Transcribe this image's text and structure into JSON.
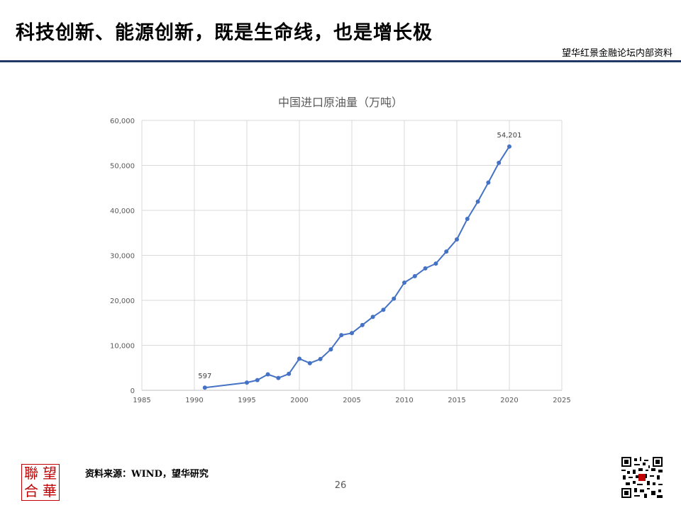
{
  "header": {
    "title": "科技创新、能源创新，既是生命线，也是增长极",
    "org_label": "望华红景金融论坛内部资料",
    "rule_color": "#1f3864"
  },
  "chart_data": {
    "type": "line",
    "title": "中国进口原油量（万吨）",
    "xlabel": "",
    "ylabel": "",
    "xlim": [
      1985,
      2025
    ],
    "ylim": [
      0,
      60000
    ],
    "x_ticks": [
      "1985",
      "1990",
      "1995",
      "2000",
      "2005",
      "2010",
      "2015",
      "2020",
      "2025"
    ],
    "y_ticks": [
      "0",
      "10,000",
      "20,000",
      "30,000",
      "40,000",
      "50,000",
      "60,000"
    ],
    "grid": true,
    "legend": "none",
    "series": [
      {
        "color": "#4472c4",
        "x": [
          1991,
          1995,
          1996,
          1997,
          1998,
          1999,
          2000,
          2001,
          2002,
          2003,
          2004,
          2005,
          2006,
          2007,
          2008,
          2009,
          2010,
          2011,
          2012,
          2013,
          2014,
          2015,
          2016,
          2017,
          2018,
          2019,
          2020
        ],
        "y": [
          597,
          1709,
          2262,
          3547,
          2732,
          3661,
          7027,
          6026,
          6941,
          9102,
          12272,
          12708,
          14517,
          16316,
          17888,
          20365,
          23931,
          25378,
          27103,
          28174,
          30837,
          33550,
          38101,
          41946,
          46190,
          50572,
          54201
        ]
      }
    ],
    "annotations": [
      {
        "x": 1991,
        "y": 597,
        "text": "597"
      },
      {
        "x": 2020,
        "y": 54201,
        "text": "54,201"
      }
    ]
  },
  "footer": {
    "source": "资料来源：WIND，望华研究",
    "page_number": "26",
    "logo_chars": [
      "聯",
      "望",
      "合",
      "華"
    ],
    "logo_color": "#c00000"
  }
}
